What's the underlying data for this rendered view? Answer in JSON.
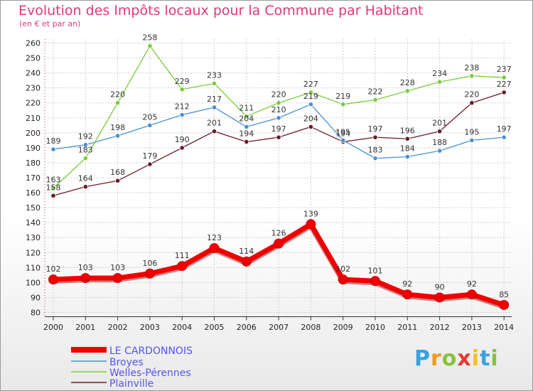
{
  "title": "Evolution des Impôts locaux pour la Commune par Habitant",
  "subtitle": "(en € et par an)",
  "logo": [
    "P",
    "r",
    "o",
    "x",
    "i",
    "t",
    "i"
  ],
  "chart_data": {
    "type": "line",
    "title": "Evolution des Impôts locaux pour la Commune par Habitant",
    "subtitle": "(en € et par an)",
    "x": [
      "2000",
      "2001",
      "2002",
      "2003",
      "2004",
      "2005",
      "2006",
      "2007",
      "2008",
      "2009",
      "2010",
      "2011",
      "2012",
      "2013",
      "2014"
    ],
    "ylim": [
      80,
      260
    ],
    "yticks": [
      80,
      90,
      100,
      110,
      120,
      130,
      140,
      150,
      160,
      170,
      180,
      190,
      200,
      210,
      220,
      230,
      240,
      250,
      260
    ],
    "grid": true,
    "legend": "bottom-left",
    "series": [
      {
        "name": "LE CARDONNOIS",
        "color": "#ee0000",
        "values": [
          102,
          103,
          103,
          106,
          111,
          123,
          114,
          126,
          139,
          102,
          101,
          92,
          90,
          92,
          85
        ]
      },
      {
        "name": "Broyes",
        "color": "#4a90d0",
        "values": [
          189,
          192,
          198,
          205,
          212,
          217,
          204,
          210,
          219,
          195,
          183,
          184,
          188,
          195,
          197
        ]
      },
      {
        "name": "Welles-Pérennes",
        "color": "#7acc3a",
        "values": [
          163,
          183,
          220,
          258,
          229,
          233,
          211,
          220,
          227,
          219,
          222,
          228,
          234,
          238,
          237
        ]
      },
      {
        "name": "Plainville",
        "color": "#6a1c28",
        "values": [
          158,
          164,
          168,
          179,
          190,
          201,
          194,
          197,
          204,
          194,
          197,
          196,
          201,
          220,
          227
        ]
      }
    ]
  }
}
